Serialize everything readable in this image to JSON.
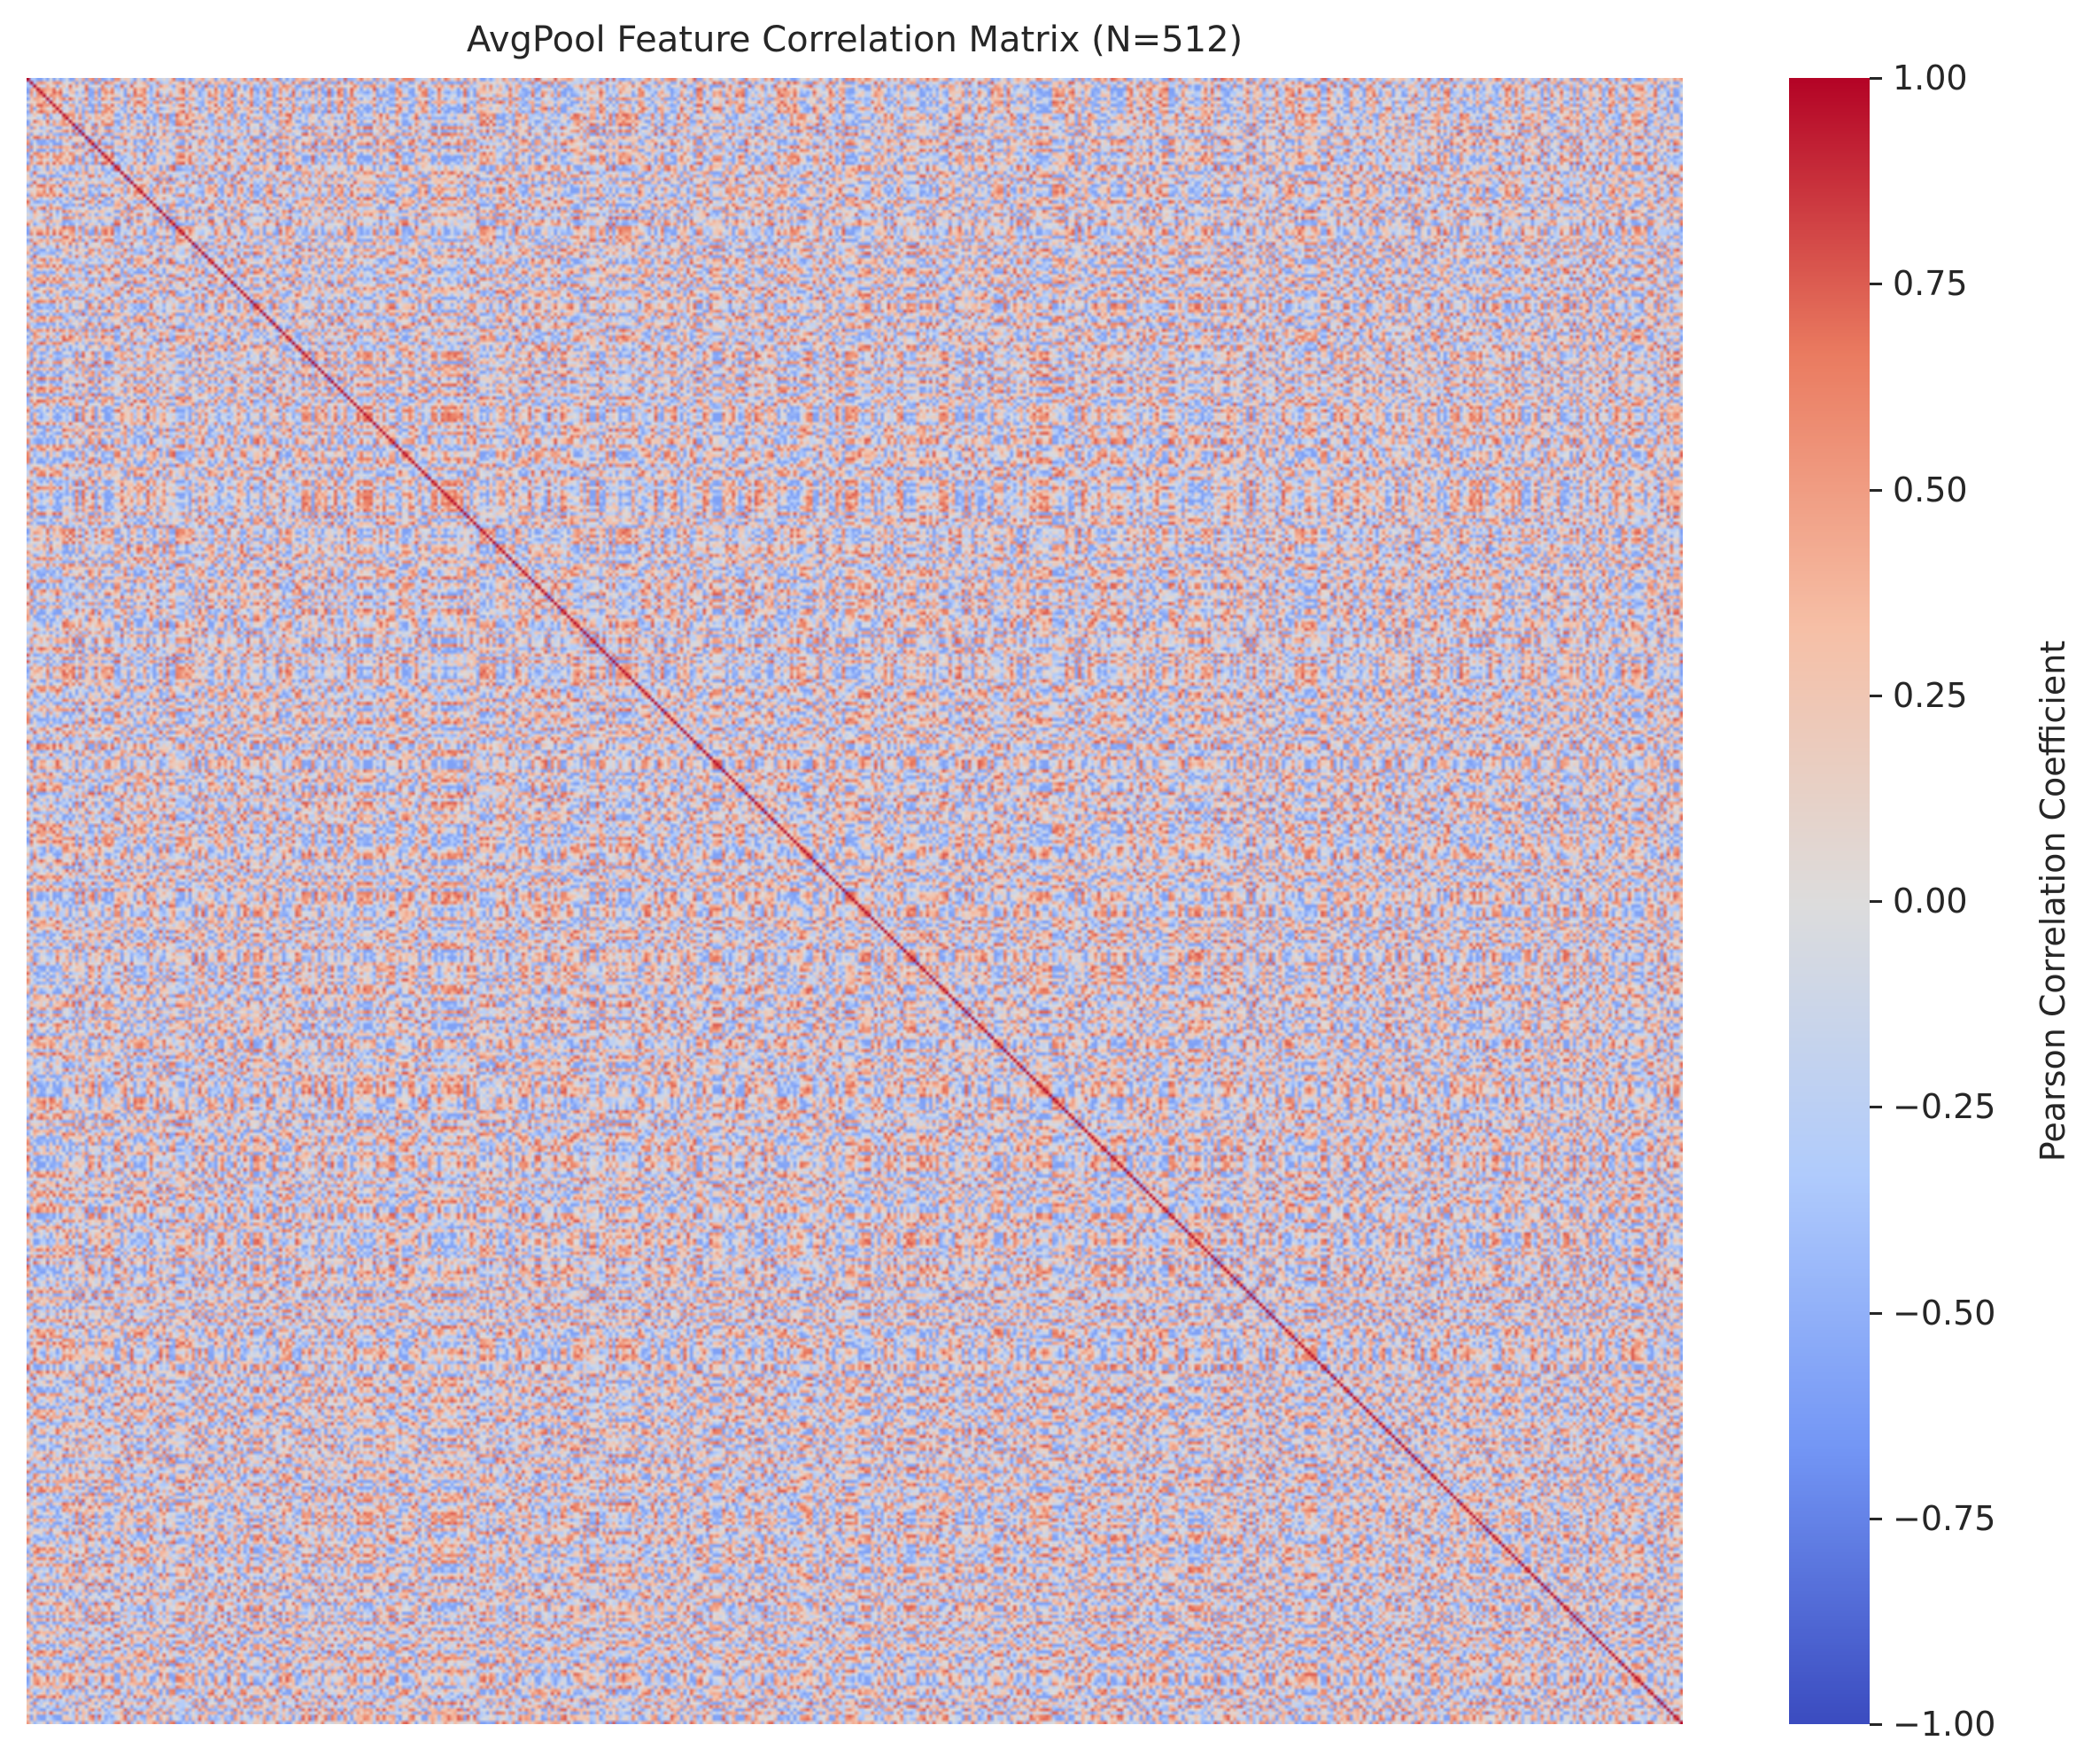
{
  "chart_data": {
    "type": "heatmap",
    "title": "AvgPool Feature Correlation Matrix (N=512)",
    "n_features": 512,
    "matrix_description_values": {
      "diagonal": 1.0,
      "off_diagonal_range": [
        -0.6,
        0.75
      ]
    },
    "xlabel": "",
    "ylabel": "",
    "x_tick_labels": [],
    "y_tick_labels": [],
    "colormap": "coolwarm",
    "vmin": -1.0,
    "vmax": 1.0,
    "colorbar": {
      "label": "Pearson Correlation Coefficient",
      "ticks": [
        1.0,
        0.75,
        0.5,
        0.25,
        0.0,
        -0.25,
        -0.5,
        -0.75,
        -1.0
      ],
      "tick_labels": [
        "1.00",
        "0.75",
        "0.50",
        "0.25",
        "0.00",
        "−0.25",
        "−0.50",
        "−0.75",
        "−1.00"
      ]
    }
  },
  "colors": {
    "cmap_stops": [
      "#3b4cc0",
      "#7396f5",
      "#b0cbfc",
      "#dddcdc",
      "#f6bfa6",
      "#ea7b60",
      "#b40426"
    ],
    "text": "#262626"
  }
}
